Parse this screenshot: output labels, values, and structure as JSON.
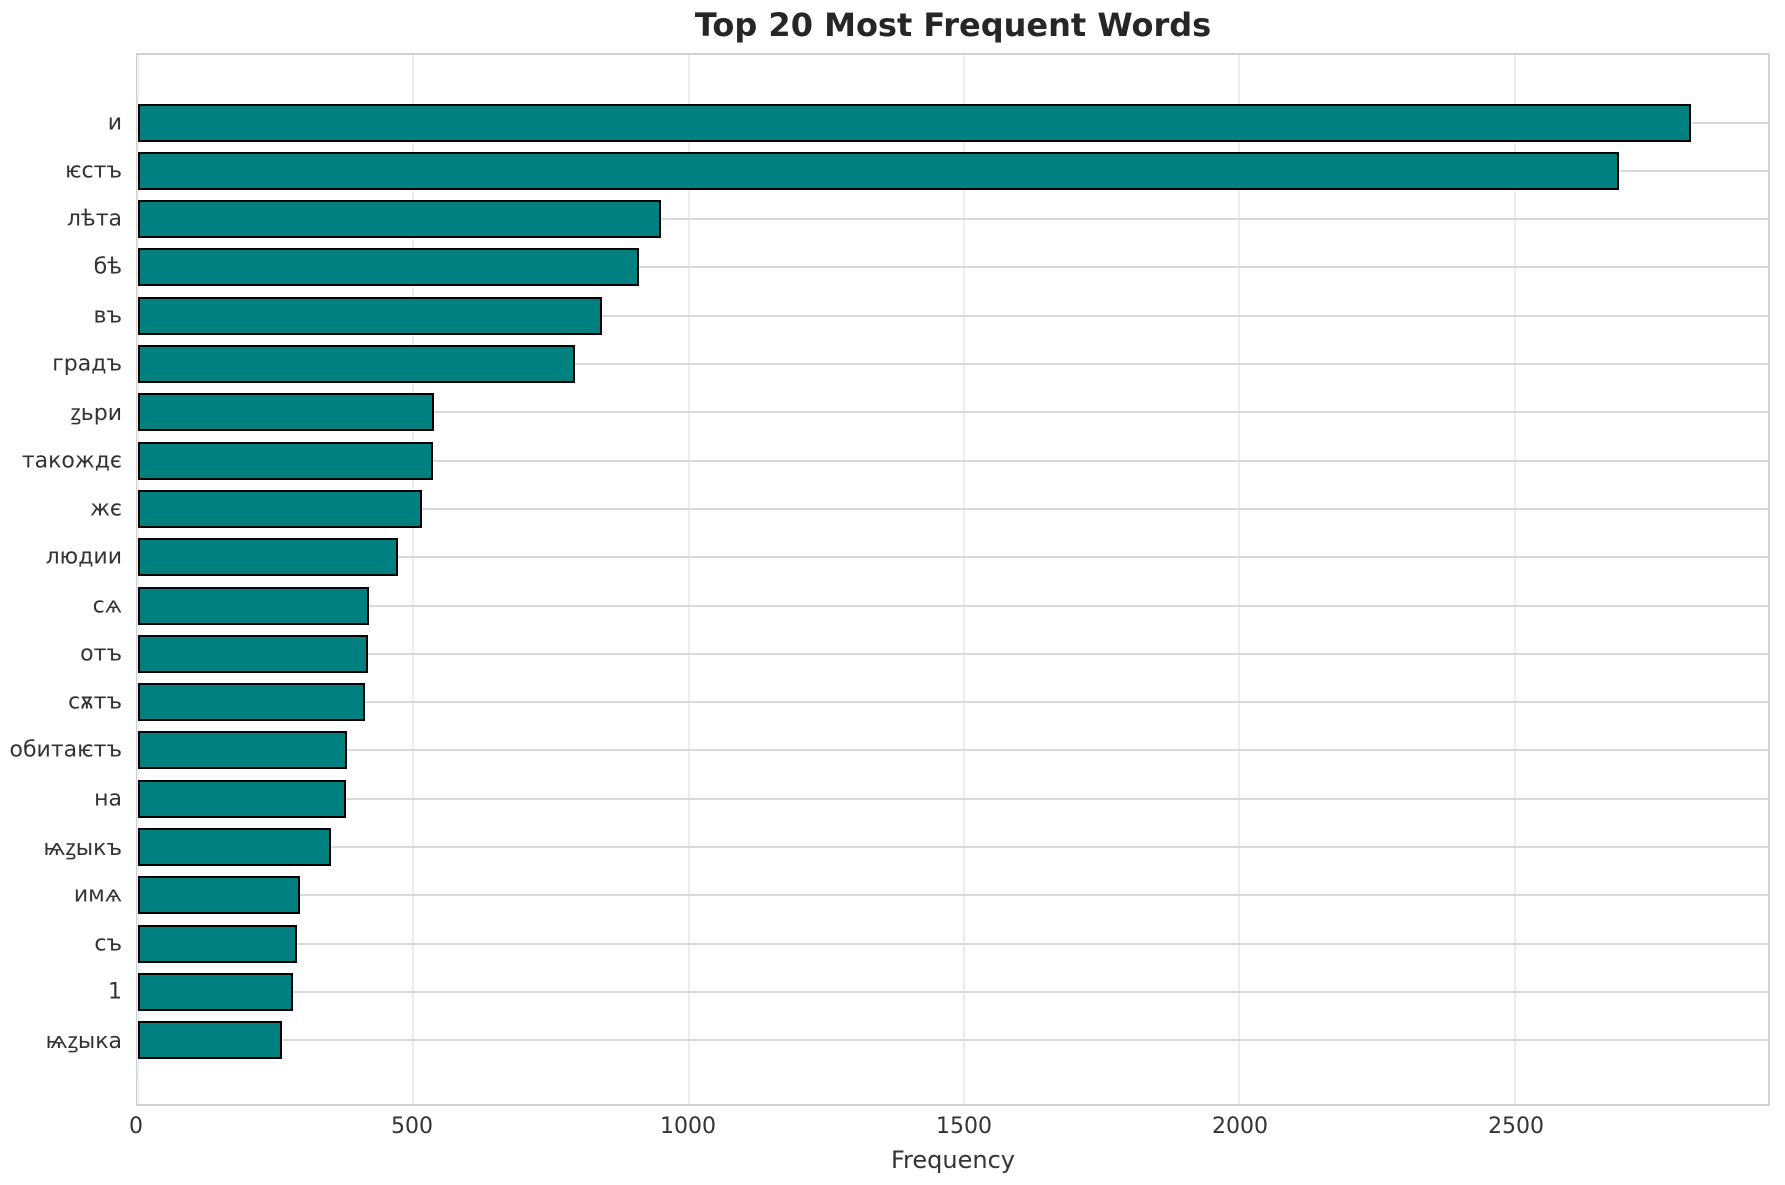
{
  "title": "Top 20 Most Frequent Words",
  "chart_data": {
    "type": "bar",
    "orientation": "horizontal",
    "title": "Top 20 Most Frequent Words",
    "xlabel": "Frequency",
    "ylabel": "",
    "categories": [
      "и",
      "ѥстъ",
      "лѣта",
      "бѣ",
      "въ",
      "градъ",
      "ꙁьри",
      "такождє",
      "жє",
      "людии",
      "сѧ",
      "отъ",
      "сѫтъ",
      "обитаѥтъ",
      "на",
      "ѩꙁыкъ",
      "имѧ",
      "съ",
      "1",
      "ѩꙁыка"
    ],
    "values": [
      2820,
      2690,
      950,
      910,
      843,
      793,
      538,
      535,
      515,
      473,
      419,
      417,
      412,
      379,
      378,
      351,
      295,
      289,
      282,
      261
    ],
    "xticks": [
      0,
      500,
      1000,
      1500,
      2000,
      2500
    ],
    "xlim": [
      0,
      2960
    ],
    "grid": true,
    "legend": "none",
    "bar_color": "#008080",
    "bar_edge_color": "#000000"
  },
  "colors": {
    "bar_fill": "#008080",
    "bar_edge": "#000000",
    "grid_horizontal": "#d9d9d9",
    "grid_vertical": "#ededed",
    "spine": "#d2d2d2",
    "title_text": "#262626",
    "tick_text": "#333333",
    "background": "#ffffff"
  }
}
